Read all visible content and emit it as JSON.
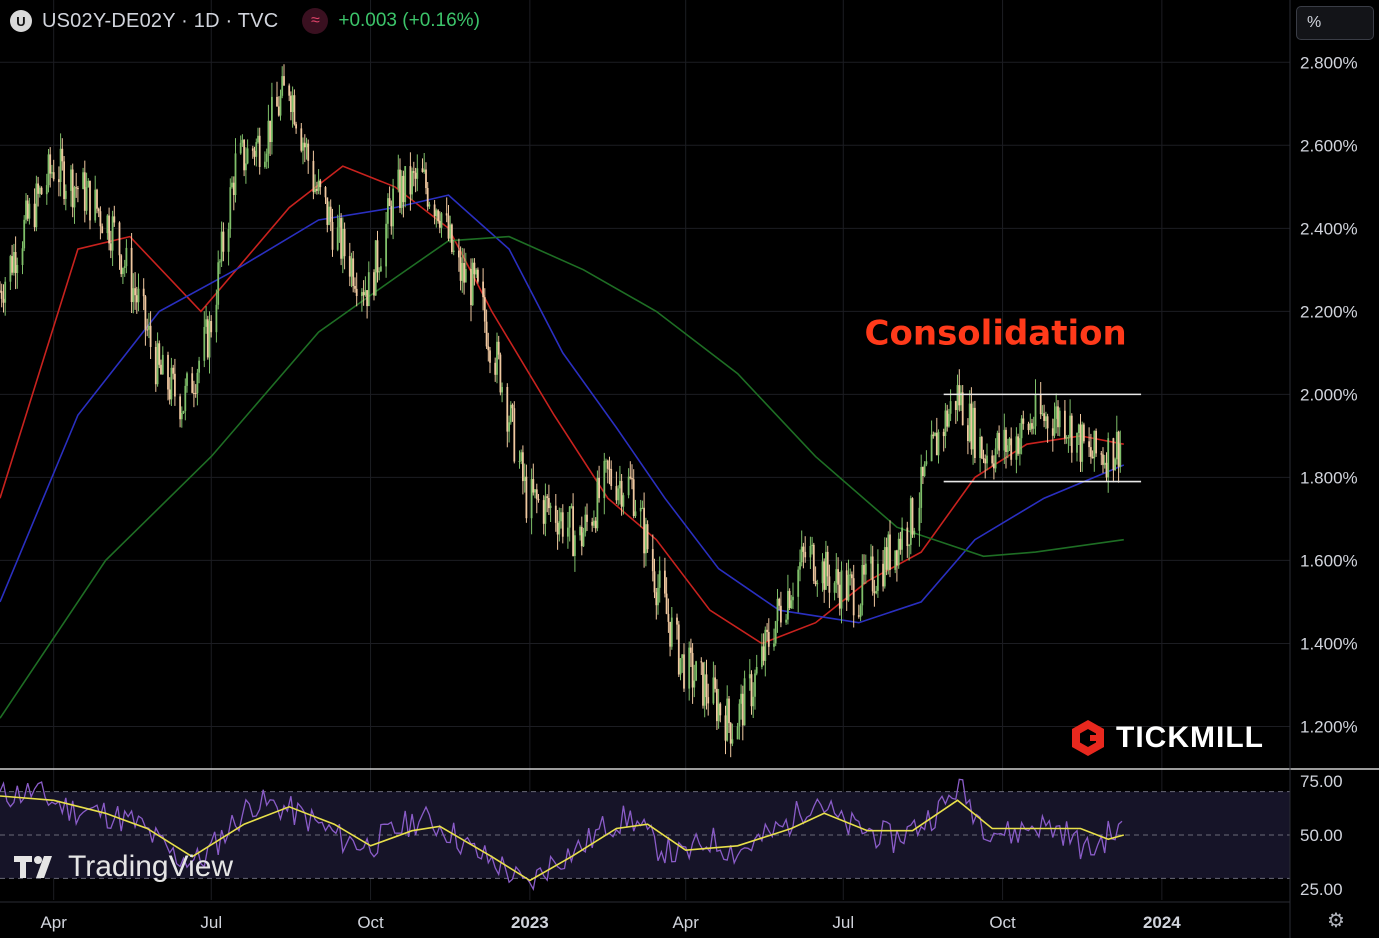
{
  "header": {
    "symbol_badge": "U",
    "symbol": "US02Y-DE02Y · 1D · TVC",
    "source_badge": "≈",
    "change": "+0.003 (+0.16%)"
  },
  "scale_button": "%",
  "watermark_brand": "TICKMILL",
  "watermark_tradingview": "TradingView",
  "colors": {
    "background": "#000000",
    "up_candle": "#7fbf6a",
    "down_candle": "#f0c8a0",
    "ma_red": "#c8221e",
    "ma_blue": "#2a2fc0",
    "ma_green": "#1e6e24",
    "rsi_line": "#8a5cc8",
    "rsi_ma": "#e8e04a",
    "annotation": "#ff3a1a",
    "change_positive": "#3cc46a"
  },
  "chart_data": [
    {
      "type": "line",
      "name": "price",
      "y_unit": "%",
      "ylim": [
        1.1,
        2.95
      ],
      "y_ticks": [
        "2.800%",
        "2.600%",
        "2.400%",
        "2.200%",
        "2.000%",
        "1.800%",
        "1.600%",
        "1.400%",
        "1.200%"
      ],
      "y_tick_values": [
        2.8,
        2.6,
        2.4,
        2.2,
        2.0,
        1.8,
        1.6,
        1.4,
        1.2
      ],
      "x_ticks": [
        "Apr",
        "Jul",
        "Oct",
        "2023",
        "Apr",
        "Jul",
        "Oct",
        "2024"
      ],
      "x_tick_dates": [
        "2022-04-01",
        "2022-07-01",
        "2022-10-01",
        "2023-01-01",
        "2023-04-01",
        "2023-07-01",
        "2023-10-01",
        "2024-01-01"
      ],
      "xlim": [
        "2022-03-01",
        "2024-03-15"
      ],
      "price_path": [
        [
          "2022-03-01",
          2.25
        ],
        [
          "2022-03-15",
          2.4
        ],
        [
          "2022-04-01",
          2.55
        ],
        [
          "2022-04-20",
          2.48
        ],
        [
          "2022-05-05",
          2.4
        ],
        [
          "2022-05-20",
          2.22
        ],
        [
          "2022-06-01",
          2.05
        ],
        [
          "2022-06-15",
          1.98
        ],
        [
          "2022-06-30",
          2.15
        ],
        [
          "2022-07-15",
          2.55
        ],
        [
          "2022-08-01",
          2.62
        ],
        [
          "2022-08-15",
          2.75
        ],
        [
          "2022-08-30",
          2.5
        ],
        [
          "2022-09-15",
          2.35
        ],
        [
          "2022-09-30",
          2.25
        ],
        [
          "2022-10-15",
          2.48
        ],
        [
          "2022-10-30",
          2.52
        ],
        [
          "2022-11-10",
          2.45
        ],
        [
          "2022-11-20",
          2.3
        ],
        [
          "2022-12-01",
          2.25
        ],
        [
          "2022-12-15",
          2.05
        ],
        [
          "2022-12-30",
          1.75
        ],
        [
          "2023-01-15",
          1.72
        ],
        [
          "2023-01-30",
          1.65
        ],
        [
          "2023-02-15",
          1.8
        ],
        [
          "2023-03-01",
          1.78
        ],
        [
          "2023-03-15",
          1.55
        ],
        [
          "2023-03-30",
          1.35
        ],
        [
          "2023-04-15",
          1.28
        ],
        [
          "2023-04-28",
          1.2
        ],
        [
          "2023-05-10",
          1.3
        ],
        [
          "2023-05-25",
          1.48
        ],
        [
          "2023-06-10",
          1.62
        ],
        [
          "2023-06-25",
          1.55
        ],
        [
          "2023-07-10",
          1.52
        ],
        [
          "2023-07-25",
          1.6
        ],
        [
          "2023-08-10",
          1.7
        ],
        [
          "2023-08-25",
          1.9
        ],
        [
          "2023-09-05",
          2.0
        ],
        [
          "2023-09-20",
          1.86
        ],
        [
          "2023-10-05",
          1.88
        ],
        [
          "2023-10-20",
          1.94
        ],
        [
          "2023-11-05",
          1.95
        ],
        [
          "2023-11-20",
          1.85
        ],
        [
          "2023-12-01",
          1.86
        ],
        [
          "2023-12-10",
          1.89
        ]
      ],
      "series": [
        {
          "color": "#c8221e",
          "values": [
            [
              "2022-03-01",
              1.75
            ],
            [
              "2022-04-15",
              2.35
            ],
            [
              "2022-05-15",
              2.38
            ],
            [
              "2022-06-25",
              2.2
            ],
            [
              "2022-08-15",
              2.45
            ],
            [
              "2022-09-15",
              2.55
            ],
            [
              "2022-10-15",
              2.5
            ],
            [
              "2022-11-15",
              2.4
            ],
            [
              "2022-12-10",
              2.2
            ],
            [
              "2023-01-15",
              1.95
            ],
            [
              "2023-02-15",
              1.75
            ],
            [
              "2023-03-15",
              1.65
            ],
            [
              "2023-04-15",
              1.48
            ],
            [
              "2023-05-15",
              1.4
            ],
            [
              "2023-06-15",
              1.45
            ],
            [
              "2023-07-15",
              1.55
            ],
            [
              "2023-08-15",
              1.62
            ],
            [
              "2023-09-15",
              1.8
            ],
            [
              "2023-10-15",
              1.88
            ],
            [
              "2023-11-15",
              1.9
            ],
            [
              "2023-12-10",
              1.88
            ]
          ]
        },
        {
          "color": "#2a2fc0",
          "values": [
            [
              "2022-03-01",
              1.5
            ],
            [
              "2022-04-15",
              1.95
            ],
            [
              "2022-06-01",
              2.2
            ],
            [
              "2022-07-15",
              2.3
            ],
            [
              "2022-09-01",
              2.42
            ],
            [
              "2022-10-15",
              2.45
            ],
            [
              "2022-11-15",
              2.48
            ],
            [
              "2022-12-20",
              2.35
            ],
            [
              "2023-01-20",
              2.1
            ],
            [
              "2023-02-20",
              1.92
            ],
            [
              "2023-03-20",
              1.75
            ],
            [
              "2023-04-20",
              1.58
            ],
            [
              "2023-05-25",
              1.48
            ],
            [
              "2023-07-10",
              1.45
            ],
            [
              "2023-08-15",
              1.5
            ],
            [
              "2023-09-15",
              1.65
            ],
            [
              "2023-10-25",
              1.75
            ],
            [
              "2023-12-10",
              1.83
            ]
          ]
        },
        {
          "color": "#1e6e24",
          "values": [
            [
              "2022-03-01",
              1.22
            ],
            [
              "2022-05-01",
              1.6
            ],
            [
              "2022-07-01",
              1.85
            ],
            [
              "2022-09-01",
              2.15
            ],
            [
              "2022-10-15",
              2.28
            ],
            [
              "2022-11-15",
              2.37
            ],
            [
              "2022-12-20",
              2.38
            ],
            [
              "2023-02-01",
              2.3
            ],
            [
              "2023-03-15",
              2.2
            ],
            [
              "2023-05-01",
              2.05
            ],
            [
              "2023-06-15",
              1.85
            ],
            [
              "2023-08-01",
              1.68
            ],
            [
              "2023-09-20",
              1.61
            ],
            [
              "2023-10-20",
              1.62
            ],
            [
              "2023-12-10",
              1.65
            ]
          ]
        }
      ],
      "annotation": {
        "text": "Consolidation",
        "x": "2023-09-27",
        "y": 2.12
      },
      "levels": [
        {
          "value": 2.0,
          "from": "2023-08-28",
          "to": "2023-12-20"
        },
        {
          "value": 1.79,
          "from": "2023-08-28",
          "to": "2023-12-20"
        }
      ]
    },
    {
      "type": "line",
      "name": "rsi",
      "ylim": [
        20,
        80
      ],
      "y_ticks": [
        "75.00",
        "50.00",
        "25.00"
      ],
      "y_tick_values": [
        75,
        50,
        25
      ],
      "bands": [
        70,
        50,
        30
      ],
      "values": [
        [
          "2022-03-01",
          68
        ],
        [
          "2022-03-20",
          70
        ],
        [
          "2022-04-10",
          62
        ],
        [
          "2022-05-01",
          60
        ],
        [
          "2022-05-20",
          55
        ],
        [
          "2022-06-10",
          40
        ],
        [
          "2022-06-25",
          38
        ],
        [
          "2022-07-10",
          52
        ],
        [
          "2022-07-25",
          65
        ],
        [
          "2022-08-10",
          63
        ],
        [
          "2022-08-25",
          58
        ],
        [
          "2022-09-15",
          48
        ],
        [
          "2022-09-30",
          45
        ],
        [
          "2022-10-15",
          52
        ],
        [
          "2022-10-30",
          58
        ],
        [
          "2022-11-15",
          52
        ],
        [
          "2022-11-30",
          42
        ],
        [
          "2022-12-15",
          36
        ],
        [
          "2022-12-30",
          26
        ],
        [
          "2023-01-15",
          38
        ],
        [
          "2023-02-01",
          45
        ],
        [
          "2023-02-15",
          55
        ],
        [
          "2023-03-01",
          58
        ],
        [
          "2023-03-15",
          45
        ],
        [
          "2023-03-30",
          40
        ],
        [
          "2023-04-15",
          48
        ],
        [
          "2023-04-30",
          42
        ],
        [
          "2023-05-15",
          48
        ],
        [
          "2023-05-30",
          55
        ],
        [
          "2023-06-15",
          68
        ],
        [
          "2023-06-30",
          55
        ],
        [
          "2023-07-15",
          52
        ],
        [
          "2023-07-30",
          48
        ],
        [
          "2023-08-15",
          55
        ],
        [
          "2023-08-30",
          65
        ],
        [
          "2023-09-05",
          73
        ],
        [
          "2023-09-20",
          55
        ],
        [
          "2023-10-05",
          50
        ],
        [
          "2023-10-20",
          55
        ],
        [
          "2023-11-05",
          52
        ],
        [
          "2023-11-20",
          42
        ],
        [
          "2023-12-01",
          50
        ],
        [
          "2023-12-10",
          52
        ]
      ],
      "ma_values": [
        [
          "2022-03-01",
          68
        ],
        [
          "2022-04-01",
          66
        ],
        [
          "2022-05-01",
          60
        ],
        [
          "2022-05-25",
          53
        ],
        [
          "2022-06-20",
          40
        ],
        [
          "2022-07-20",
          55
        ],
        [
          "2022-08-15",
          63
        ],
        [
          "2022-09-10",
          55
        ],
        [
          "2022-10-01",
          45
        ],
        [
          "2022-10-25",
          52
        ],
        [
          "2022-11-10",
          54
        ],
        [
          "2022-12-10",
          40
        ],
        [
          "2023-01-01",
          29
        ],
        [
          "2023-01-25",
          40
        ],
        [
          "2023-02-20",
          53
        ],
        [
          "2023-03-10",
          55
        ],
        [
          "2023-04-01",
          43
        ],
        [
          "2023-05-01",
          45
        ],
        [
          "2023-06-01",
          53
        ],
        [
          "2023-06-20",
          60
        ],
        [
          "2023-07-15",
          52
        ],
        [
          "2023-08-10",
          52
        ],
        [
          "2023-09-05",
          66
        ],
        [
          "2023-09-25",
          53
        ],
        [
          "2023-10-20",
          53
        ],
        [
          "2023-11-15",
          53
        ],
        [
          "2023-12-01",
          48
        ],
        [
          "2023-12-10",
          50
        ]
      ]
    }
  ]
}
